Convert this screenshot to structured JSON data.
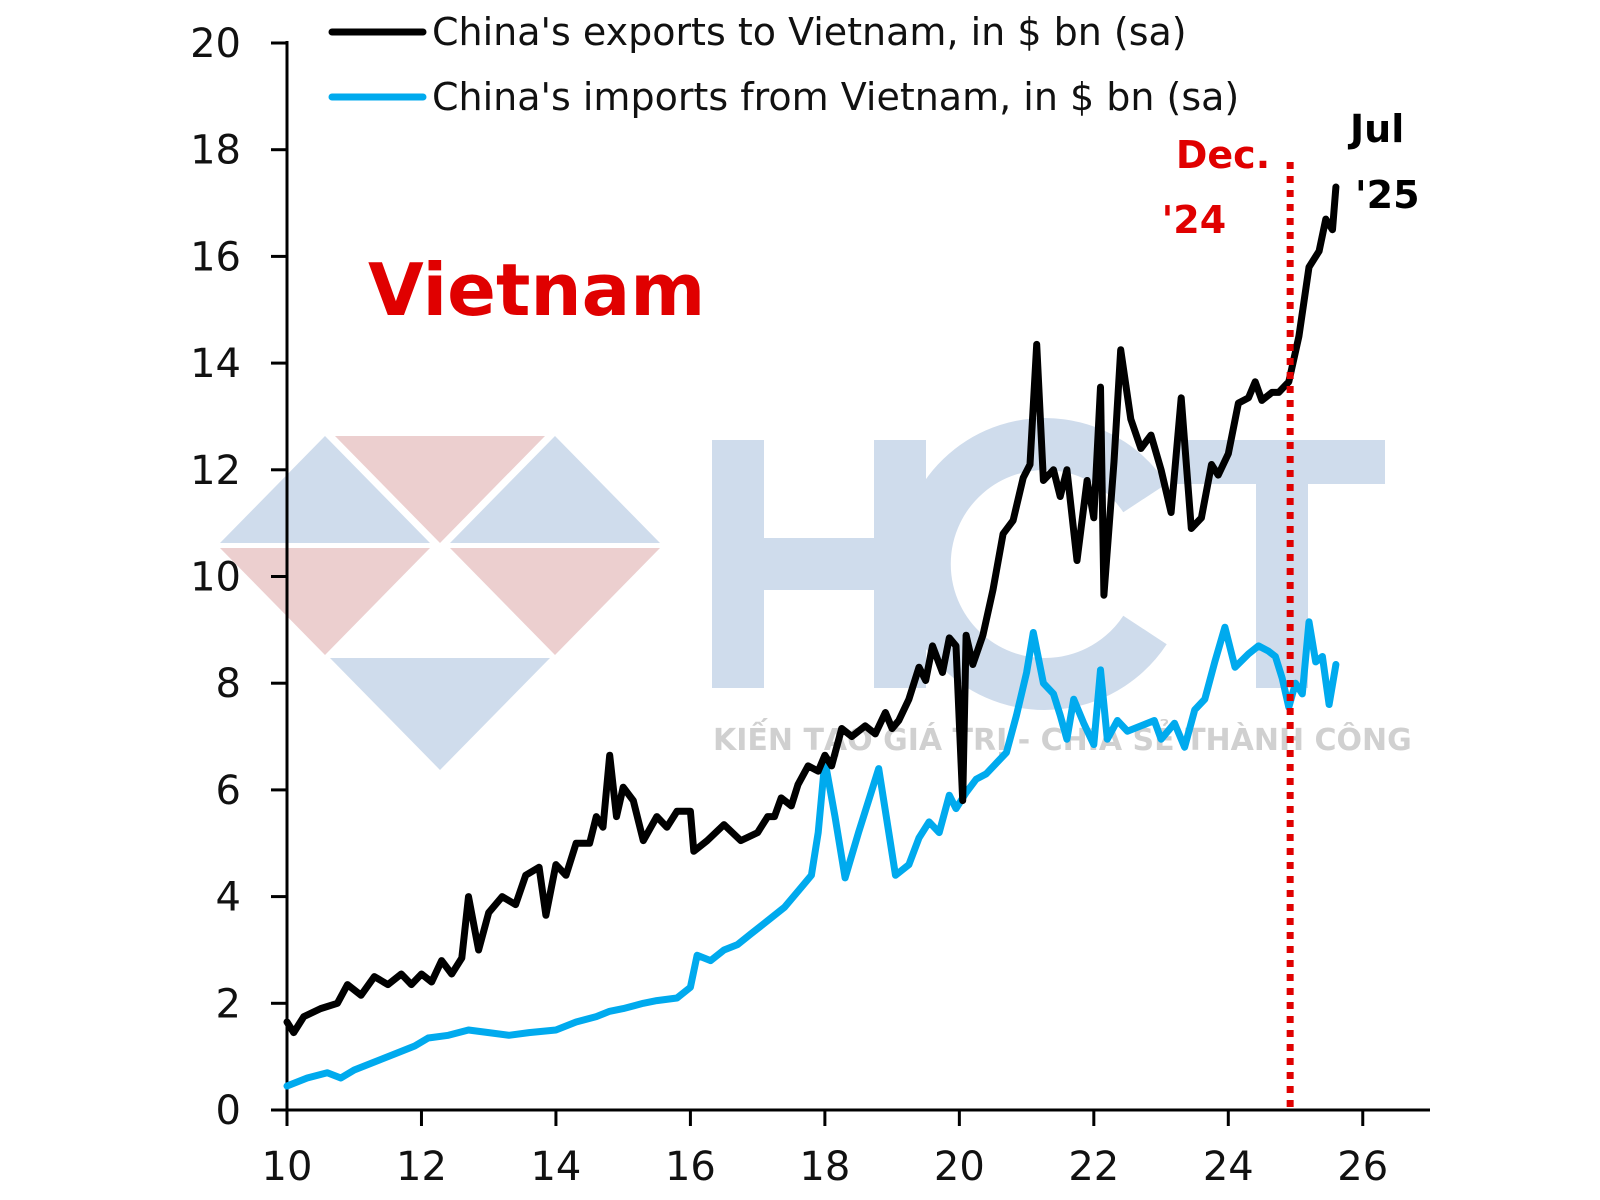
{
  "watermark": {
    "brand": "HCT",
    "tagline": "KIẾN TẠO GIÁ TRỊ - CHIA SẺ THÀNH CÔNG",
    "colors": {
      "blue": "#cfdcec",
      "red": "#eccfcf"
    }
  },
  "chart_data": {
    "type": "line",
    "title": "Vietnam",
    "title_color": "#e00000",
    "xlim": [
      10,
      27
    ],
    "ylim": [
      0,
      20
    ],
    "x_ticks": [
      10,
      12,
      14,
      16,
      18,
      20,
      22,
      24,
      26
    ],
    "y_ticks": [
      0,
      2,
      4,
      6,
      8,
      10,
      12,
      14,
      16,
      18,
      20
    ],
    "legend_position": "top-left",
    "grid": false,
    "series": [
      {
        "name": "China's exports to Vietnam, in $ bn (sa)",
        "color": "#000000",
        "points": [
          [
            10.0,
            1.65
          ],
          [
            10.1,
            1.45
          ],
          [
            10.25,
            1.75
          ],
          [
            10.5,
            1.9
          ],
          [
            10.75,
            2.0
          ],
          [
            10.9,
            2.35
          ],
          [
            11.1,
            2.15
          ],
          [
            11.3,
            2.5
          ],
          [
            11.5,
            2.35
          ],
          [
            11.7,
            2.55
          ],
          [
            11.85,
            2.35
          ],
          [
            12.0,
            2.55
          ],
          [
            12.15,
            2.4
          ],
          [
            12.3,
            2.8
          ],
          [
            12.45,
            2.55
          ],
          [
            12.6,
            2.85
          ],
          [
            12.7,
            4.0
          ],
          [
            12.85,
            3.0
          ],
          [
            13.0,
            3.7
          ],
          [
            13.2,
            4.0
          ],
          [
            13.4,
            3.85
          ],
          [
            13.55,
            4.4
          ],
          [
            13.75,
            4.55
          ],
          [
            13.85,
            3.65
          ],
          [
            14.0,
            4.6
          ],
          [
            14.15,
            4.4
          ],
          [
            14.3,
            5.0
          ],
          [
            14.5,
            5.0
          ],
          [
            14.6,
            5.5
          ],
          [
            14.7,
            5.3
          ],
          [
            14.8,
            6.65
          ],
          [
            14.9,
            5.5
          ],
          [
            15.0,
            6.05
          ],
          [
            15.15,
            5.8
          ],
          [
            15.3,
            5.05
          ],
          [
            15.5,
            5.5
          ],
          [
            15.65,
            5.3
          ],
          [
            15.8,
            5.6
          ],
          [
            16.0,
            5.6
          ],
          [
            16.05,
            4.85
          ],
          [
            16.25,
            5.05
          ],
          [
            16.5,
            5.35
          ],
          [
            16.75,
            5.05
          ],
          [
            17.0,
            5.2
          ],
          [
            17.15,
            5.5
          ],
          [
            17.25,
            5.5
          ],
          [
            17.35,
            5.85
          ],
          [
            17.5,
            5.7
          ],
          [
            17.6,
            6.1
          ],
          [
            17.75,
            6.45
          ],
          [
            17.9,
            6.35
          ],
          [
            18.0,
            6.65
          ],
          [
            18.1,
            6.45
          ],
          [
            18.25,
            7.15
          ],
          [
            18.4,
            7.0
          ],
          [
            18.6,
            7.2
          ],
          [
            18.75,
            7.05
          ],
          [
            18.9,
            7.45
          ],
          [
            19.0,
            7.15
          ],
          [
            19.1,
            7.3
          ],
          [
            19.25,
            7.7
          ],
          [
            19.4,
            8.3
          ],
          [
            19.5,
            8.05
          ],
          [
            19.6,
            8.7
          ],
          [
            19.75,
            8.2
          ],
          [
            19.85,
            8.85
          ],
          [
            19.95,
            8.7
          ],
          [
            20.05,
            5.8
          ],
          [
            20.1,
            8.9
          ],
          [
            20.2,
            8.35
          ],
          [
            20.35,
            8.9
          ],
          [
            20.5,
            9.75
          ],
          [
            20.65,
            10.8
          ],
          [
            20.8,
            11.05
          ],
          [
            20.95,
            11.85
          ],
          [
            21.05,
            12.1
          ],
          [
            21.15,
            14.35
          ],
          [
            21.25,
            11.8
          ],
          [
            21.4,
            12.0
          ],
          [
            21.5,
            11.5
          ],
          [
            21.6,
            12.0
          ],
          [
            21.75,
            10.3
          ],
          [
            21.9,
            11.8
          ],
          [
            22.0,
            11.1
          ],
          [
            22.1,
            13.55
          ],
          [
            22.15,
            9.65
          ],
          [
            22.3,
            12.15
          ],
          [
            22.4,
            14.25
          ],
          [
            22.55,
            12.95
          ],
          [
            22.7,
            12.4
          ],
          [
            22.85,
            12.65
          ],
          [
            23.0,
            12.0
          ],
          [
            23.15,
            11.2
          ],
          [
            23.3,
            13.35
          ],
          [
            23.45,
            10.9
          ],
          [
            23.6,
            11.1
          ],
          [
            23.75,
            12.1
          ],
          [
            23.85,
            11.9
          ],
          [
            24.0,
            12.3
          ],
          [
            24.15,
            13.25
          ],
          [
            24.3,
            13.35
          ],
          [
            24.4,
            13.65
          ],
          [
            24.5,
            13.3
          ],
          [
            24.65,
            13.45
          ],
          [
            24.75,
            13.45
          ],
          [
            24.9,
            13.65
          ],
          [
            25.05,
            14.5
          ],
          [
            25.2,
            15.8
          ],
          [
            25.35,
            16.1
          ],
          [
            25.45,
            16.7
          ],
          [
            25.55,
            16.5
          ],
          [
            25.6,
            17.3
          ]
        ]
      },
      {
        "name": "China's imports from Vietnam, in $ bn (sa)",
        "color": "#00aaee",
        "points": [
          [
            10.0,
            0.45
          ],
          [
            10.3,
            0.6
          ],
          [
            10.6,
            0.7
          ],
          [
            10.8,
            0.6
          ],
          [
            11.0,
            0.75
          ],
          [
            11.3,
            0.9
          ],
          [
            11.6,
            1.05
          ],
          [
            11.9,
            1.2
          ],
          [
            12.1,
            1.35
          ],
          [
            12.4,
            1.4
          ],
          [
            12.7,
            1.5
          ],
          [
            13.0,
            1.45
          ],
          [
            13.3,
            1.4
          ],
          [
            13.6,
            1.45
          ],
          [
            14.0,
            1.5
          ],
          [
            14.3,
            1.65
          ],
          [
            14.6,
            1.75
          ],
          [
            14.8,
            1.85
          ],
          [
            15.0,
            1.9
          ],
          [
            15.3,
            2.0
          ],
          [
            15.5,
            2.05
          ],
          [
            15.8,
            2.1
          ],
          [
            16.0,
            2.3
          ],
          [
            16.1,
            2.9
          ],
          [
            16.3,
            2.8
          ],
          [
            16.5,
            3.0
          ],
          [
            16.7,
            3.1
          ],
          [
            16.9,
            3.3
          ],
          [
            17.1,
            3.5
          ],
          [
            17.4,
            3.8
          ],
          [
            17.6,
            4.1
          ],
          [
            17.8,
            4.4
          ],
          [
            17.9,
            5.2
          ],
          [
            18.0,
            6.55
          ],
          [
            18.15,
            5.5
          ],
          [
            18.3,
            4.35
          ],
          [
            18.5,
            5.2
          ],
          [
            18.65,
            5.8
          ],
          [
            18.8,
            6.4
          ],
          [
            18.95,
            5.2
          ],
          [
            19.05,
            4.4
          ],
          [
            19.25,
            4.6
          ],
          [
            19.4,
            5.1
          ],
          [
            19.55,
            5.4
          ],
          [
            19.7,
            5.2
          ],
          [
            19.85,
            5.9
          ],
          [
            19.95,
            5.65
          ],
          [
            20.1,
            5.95
          ],
          [
            20.25,
            6.2
          ],
          [
            20.4,
            6.3
          ],
          [
            20.55,
            6.5
          ],
          [
            20.7,
            6.7
          ],
          [
            20.85,
            7.4
          ],
          [
            21.0,
            8.2
          ],
          [
            21.1,
            8.95
          ],
          [
            21.25,
            8.0
          ],
          [
            21.4,
            7.8
          ],
          [
            21.5,
            7.4
          ],
          [
            21.6,
            6.95
          ],
          [
            21.7,
            7.7
          ],
          [
            21.85,
            7.25
          ],
          [
            22.0,
            6.85
          ],
          [
            22.1,
            8.25
          ],
          [
            22.2,
            6.95
          ],
          [
            22.35,
            7.3
          ],
          [
            22.5,
            7.1
          ],
          [
            22.7,
            7.2
          ],
          [
            22.9,
            7.3
          ],
          [
            23.0,
            6.95
          ],
          [
            23.2,
            7.25
          ],
          [
            23.35,
            6.8
          ],
          [
            23.5,
            7.5
          ],
          [
            23.65,
            7.7
          ],
          [
            23.8,
            8.4
          ],
          [
            23.95,
            9.05
          ],
          [
            24.1,
            8.3
          ],
          [
            24.3,
            8.55
          ],
          [
            24.45,
            8.7
          ],
          [
            24.6,
            8.6
          ],
          [
            24.7,
            8.5
          ],
          [
            24.8,
            8.1
          ],
          [
            24.9,
            7.55
          ],
          [
            25.0,
            8.0
          ],
          [
            25.1,
            7.8
          ],
          [
            25.2,
            9.15
          ],
          [
            25.3,
            8.4
          ],
          [
            25.4,
            8.5
          ],
          [
            25.5,
            7.6
          ],
          [
            25.6,
            8.35
          ]
        ]
      }
    ],
    "annotations": [
      {
        "lines": [
          "Dec.",
          "'24"
        ],
        "color": "#e00000",
        "x": 24.92
      },
      {
        "lines": [
          "Jul",
          "'25"
        ],
        "color": "#000000",
        "x": 25.6
      }
    ],
    "marker_line": {
      "x": 24.92,
      "color": "#e00000",
      "style": "dotted"
    }
  }
}
